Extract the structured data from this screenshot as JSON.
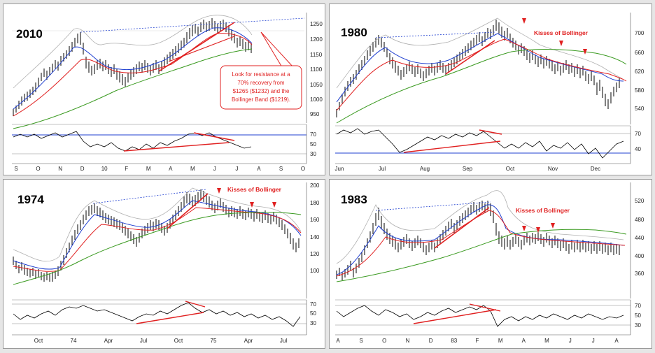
{
  "charts": [
    {
      "year_label": "2010",
      "price_ticks": [
        "1250",
        "1200",
        "1150",
        "1100",
        "1050",
        "1000",
        "950"
      ],
      "osc_ticks": [
        "70",
        "50",
        "30"
      ],
      "x_labels": [
        "S",
        "O",
        "N",
        "D",
        "10",
        "F",
        "M",
        "A",
        "M",
        "J",
        "J",
        "A",
        "S",
        "O"
      ],
      "kisses_label": "",
      "callout": [
        "Look for resistance at a",
        "70% recovery from",
        "$1265 ($1232) and the",
        "Bollinger Band ($1219)."
      ],
      "colors": {
        "price": "#000000",
        "upper_band": "#b0b0b0",
        "ma_short": "#1f3fd0",
        "ma_mid": "#e02020",
        "ma_long": "#3a9a20",
        "trend": "#e02020",
        "osc_ref": "#1f3fd0"
      }
    },
    {
      "year_label": "1980",
      "price_ticks": [
        "700",
        "660",
        "620",
        "580",
        "540"
      ],
      "osc_ticks": [
        "70",
        "40"
      ],
      "x_labels": [
        "Jun",
        "Jul",
        "Aug",
        "Sep",
        "Oct",
        "Nov",
        "Dec"
      ],
      "kisses_label": "Kisses of Bollinger",
      "callout": [],
      "colors": {
        "price": "#000000",
        "upper_band": "#b0b0b0",
        "ma_short": "#1f3fd0",
        "ma_mid": "#e02020",
        "ma_long": "#3a9a20",
        "trend": "#e02020",
        "osc_ref": "#1f3fd0"
      }
    },
    {
      "year_label": "1974",
      "price_ticks": [
        "200",
        "180",
        "160",
        "140",
        "120",
        "100"
      ],
      "osc_ticks": [
        "70",
        "50",
        "30"
      ],
      "x_labels": [
        "Oct",
        "74",
        "Apr",
        "Jul",
        "Oct",
        "75",
        "Apr",
        "Jul"
      ],
      "kisses_label": "Kisses of Bollinger",
      "callout": [],
      "colors": {
        "price": "#000000",
        "upper_band": "#b0b0b0",
        "ma_short": "#1f3fd0",
        "ma_mid": "#e02020",
        "ma_long": "#3a9a20",
        "trend": "#e02020",
        "osc_ref": "#808080"
      }
    },
    {
      "year_label": "1983",
      "price_ticks": [
        "520",
        "480",
        "440",
        "400",
        "360"
      ],
      "osc_ticks": [
        "70",
        "50",
        "30"
      ],
      "x_labels": [
        "A",
        "S",
        "O",
        "N",
        "D",
        "83",
        "F",
        "M",
        "A",
        "M",
        "J",
        "J",
        "A"
      ],
      "kisses_label": "Kisses of Bollinger",
      "callout": [],
      "colors": {
        "price": "#000000",
        "upper_band": "#b0b0b0",
        "ma_short": "#1f3fd0",
        "ma_mid": "#e02020",
        "ma_long": "#3a9a20",
        "trend": "#e02020",
        "osc_ref": "#808080"
      }
    }
  ]
}
